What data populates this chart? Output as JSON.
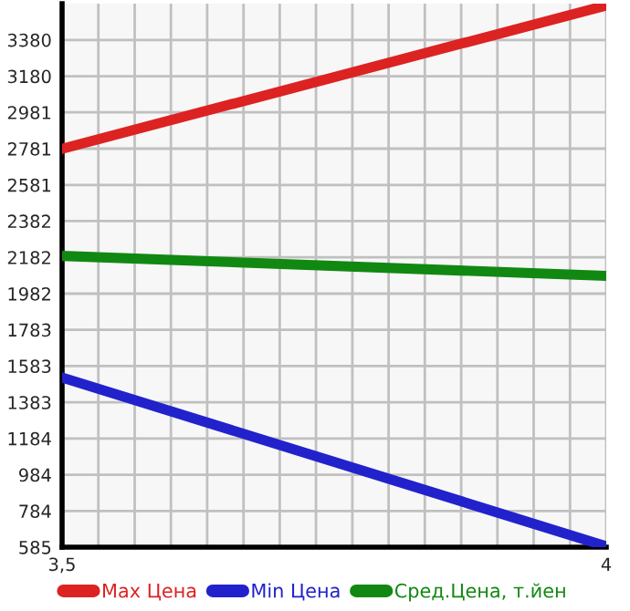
{
  "chart_data": {
    "type": "line",
    "x": [
      3.5,
      4
    ],
    "series": [
      {
        "name": "Max Цена",
        "color": "#dd2222",
        "values": [
          2780,
          3570
        ]
      },
      {
        "name": "Min Цена",
        "color": "#2222cc",
        "values": [
          1520,
          590
        ]
      },
      {
        "name": "Сред.Цена, т.йен",
        "color": "#118811",
        "values": [
          2190,
          2080
        ]
      }
    ],
    "xlim": [
      3.5,
      4
    ],
    "xticks": [
      {
        "value": 3.5,
        "label": "3,5"
      },
      {
        "value": 3.5333,
        "label": null
      },
      {
        "value": 3.5667,
        "label": null
      },
      {
        "value": 3.6,
        "label": null
      },
      {
        "value": 3.6333,
        "label": null
      },
      {
        "value": 3.6667,
        "label": null
      },
      {
        "value": 3.7,
        "label": null
      },
      {
        "value": 3.7333,
        "label": null
      },
      {
        "value": 3.7667,
        "label": null
      },
      {
        "value": 3.8,
        "label": null
      },
      {
        "value": 3.8333,
        "label": null
      },
      {
        "value": 3.8667,
        "label": null
      },
      {
        "value": 3.9,
        "label": null
      },
      {
        "value": 3.9333,
        "label": null
      },
      {
        "value": 3.9667,
        "label": null
      },
      {
        "value": 4,
        "label": "4"
      }
    ],
    "ylim": [
      585,
      3580
    ],
    "yticks": [
      585,
      784,
      984,
      1184,
      1383,
      1583,
      1783,
      1982,
      2182,
      2382,
      2581,
      2781,
      2981,
      3180,
      3380
    ],
    "grid": true,
    "legend": "bottom",
    "marker": "none",
    "line_style": "solid"
  }
}
